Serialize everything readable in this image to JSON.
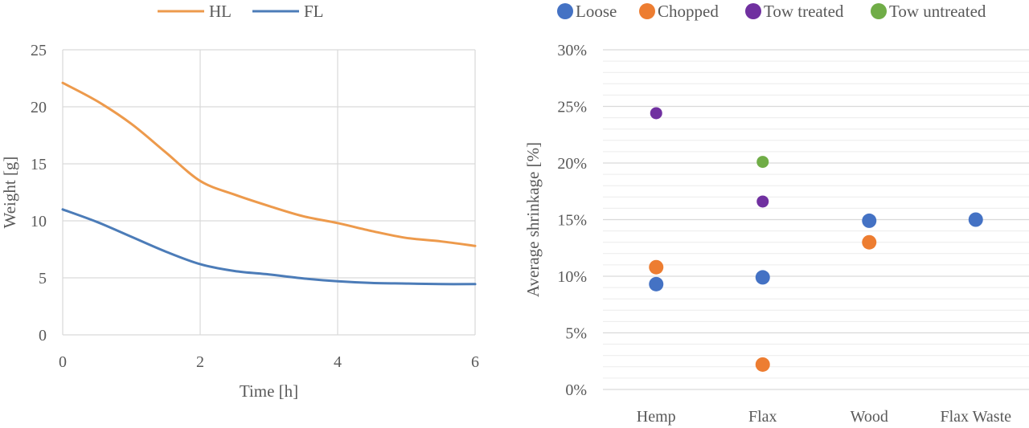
{
  "chart_data": [
    {
      "type": "line",
      "xlabel": "Time [h]",
      "ylabel": "Weight [g]",
      "xlim": [
        0,
        6
      ],
      "ylim": [
        0,
        25
      ],
      "x_ticks": [
        "0",
        "2",
        "4",
        "6"
      ],
      "y_ticks": [
        "0",
        "5",
        "10",
        "15",
        "20",
        "25"
      ],
      "grid": true,
      "legend_position": "top",
      "series": [
        {
          "name": "HL",
          "color": "#ED9A4C",
          "points": [
            [
              0,
              22.1
            ],
            [
              0.5,
              20.5
            ],
            [
              1,
              18.5
            ],
            [
              1.5,
              16.0
            ],
            [
              2,
              13.5
            ],
            [
              2.5,
              12.3
            ],
            [
              3,
              11.3
            ],
            [
              3.5,
              10.4
            ],
            [
              4,
              9.8
            ],
            [
              4.5,
              9.1
            ],
            [
              5,
              8.5
            ],
            [
              5.5,
              8.2
            ],
            [
              6,
              7.8
            ]
          ]
        },
        {
          "name": "FL",
          "color": "#4C7CB8",
          "points": [
            [
              0,
              11.0
            ],
            [
              0.5,
              9.9
            ],
            [
              1,
              8.6
            ],
            [
              1.5,
              7.3
            ],
            [
              2,
              6.2
            ],
            [
              2.5,
              5.6
            ],
            [
              3,
              5.3
            ],
            [
              3.5,
              4.95
            ],
            [
              4,
              4.7
            ],
            [
              4.5,
              4.55
            ],
            [
              5,
              4.5
            ],
            [
              5.5,
              4.45
            ],
            [
              6,
              4.45
            ]
          ]
        }
      ]
    },
    {
      "type": "scatter",
      "ylabel": "Average shrinkage [%]",
      "categories": [
        "Hemp",
        "Flax",
        "Wood",
        "Flax Waste"
      ],
      "ylim": [
        0,
        30
      ],
      "y_ticks": [
        "0%",
        "5%",
        "10%",
        "15%",
        "20%",
        "25%",
        "30%"
      ],
      "grid": true,
      "legend_position": "top",
      "series": [
        {
          "name": "Loose",
          "color": "#4472C4",
          "points": [
            [
              "Hemp",
              9.3
            ],
            [
              "Flax",
              9.9
            ],
            [
              "Wood",
              14.9
            ],
            [
              "Flax Waste",
              15.0
            ]
          ]
        },
        {
          "name": "Chopped",
          "color": "#ED7D31",
          "points": [
            [
              "Hemp",
              10.8
            ],
            [
              "Flax",
              2.2
            ],
            [
              "Wood",
              13.0
            ]
          ]
        },
        {
          "name": "Tow treated",
          "color": "#7030A0",
          "points": [
            [
              "Hemp",
              24.4
            ],
            [
              "Flax",
              16.6
            ]
          ]
        },
        {
          "name": "Tow untreated",
          "color": "#70AD47",
          "points": [
            [
              "Flax",
              20.1
            ]
          ]
        }
      ]
    }
  ]
}
